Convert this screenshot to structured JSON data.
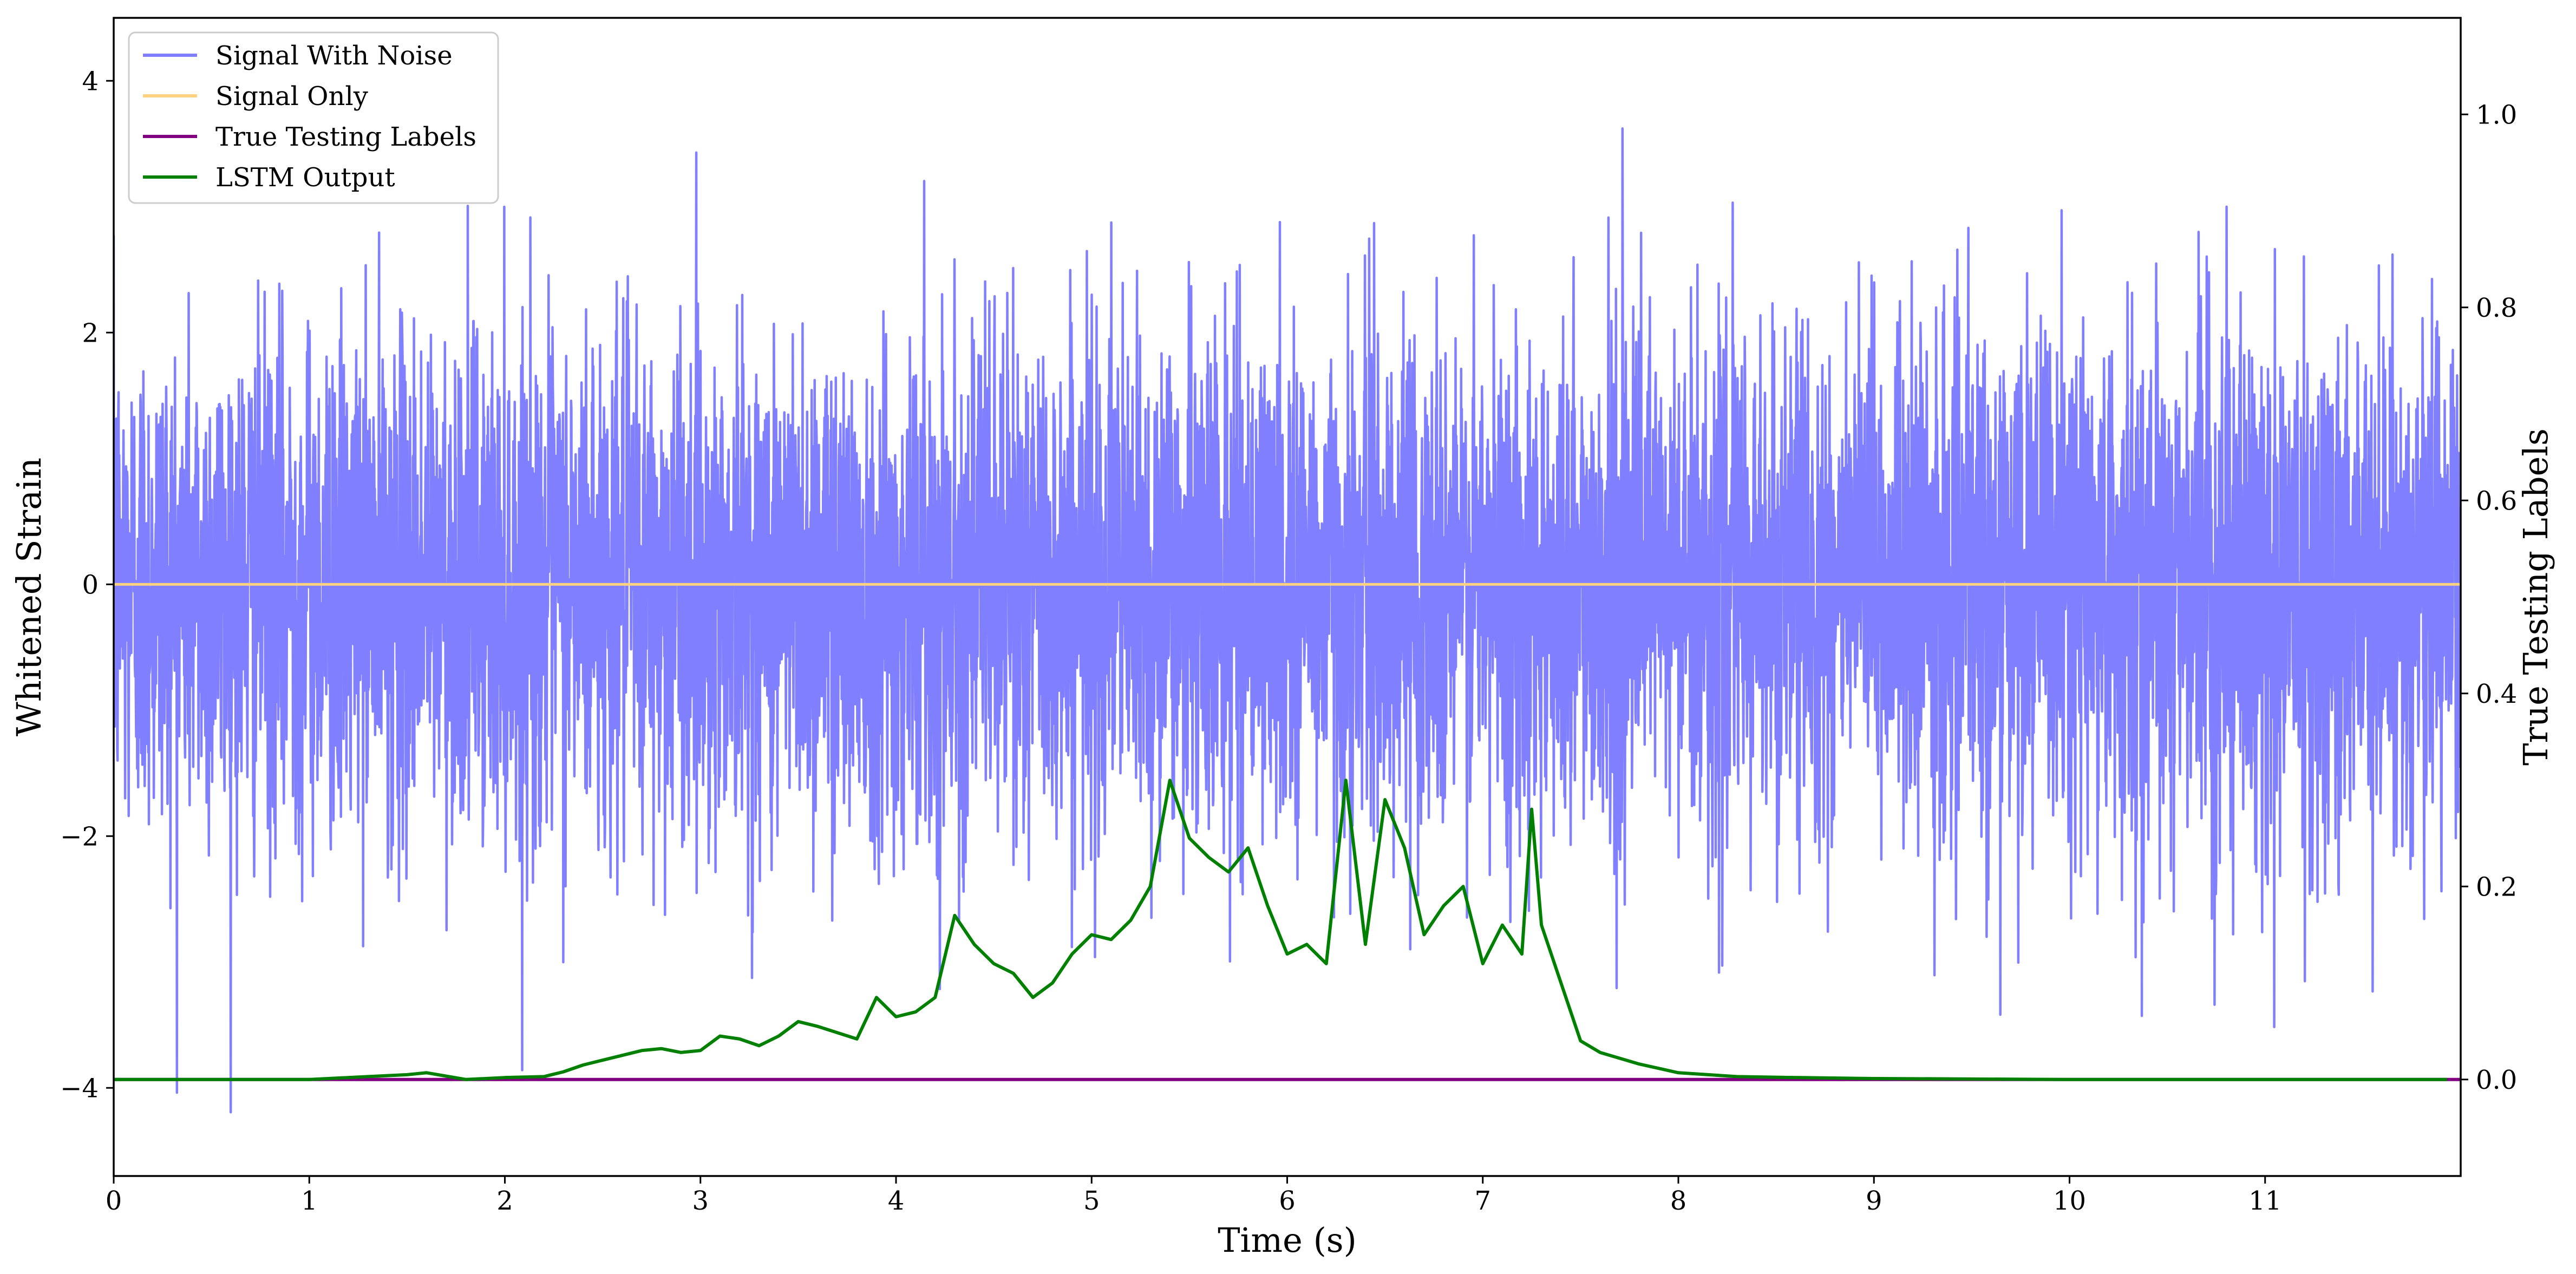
{
  "chart_data": {
    "type": "line",
    "xlabel": "Time (s)",
    "ylabel_left": "Whitened Strain",
    "ylabel_right": "True Testing Labels",
    "xlim": [
      0,
      12
    ],
    "ylim_left": [
      -4.7,
      4.5
    ],
    "ylim_right": [
      -0.1,
      1.1
    ],
    "x_ticks": [
      "0",
      "1",
      "2",
      "3",
      "4",
      "5",
      "6",
      "7",
      "8",
      "9",
      "10",
      "11"
    ],
    "y_ticks_left": [
      "4",
      "2",
      "0",
      "−2",
      "−4"
    ],
    "y_ticks_right": [
      "1.0",
      "0.8",
      "0.6",
      "0.4",
      "0.2",
      "0.0"
    ],
    "grid": false,
    "legend_position": "upper-left",
    "series": [
      {
        "name": "Signal With Noise",
        "axis": "left",
        "color": "#7f7fff",
        "style": "noise",
        "sigma": 1.0,
        "range": [
          -4.25,
          4.1
        ]
      },
      {
        "name": "Signal Only",
        "axis": "left",
        "color": "#ffd280",
        "x": [
          0,
          12
        ],
        "y": [
          0,
          0
        ]
      },
      {
        "name": "True Testing Labels",
        "axis": "right",
        "color": "#800080",
        "x": [
          0,
          12
        ],
        "y": [
          0,
          0
        ]
      },
      {
        "name": "LSTM Output",
        "axis": "right",
        "color": "#008000",
        "x": [
          0,
          1.0,
          1.3,
          1.5,
          1.6,
          1.8,
          2.0,
          2.2,
          2.3,
          2.4,
          2.5,
          2.6,
          2.7,
          2.8,
          2.9,
          3.0,
          3.1,
          3.2,
          3.3,
          3.4,
          3.5,
          3.6,
          3.8,
          3.9,
          4.0,
          4.1,
          4.2,
          4.3,
          4.4,
          4.5,
          4.6,
          4.7,
          4.8,
          4.9,
          5.0,
          5.1,
          5.2,
          5.3,
          5.4,
          5.5,
          5.6,
          5.7,
          5.8,
          5.9,
          6.0,
          6.1,
          6.2,
          6.3,
          6.4,
          6.5,
          6.6,
          6.7,
          6.8,
          6.9,
          7.0,
          7.1,
          7.2,
          7.25,
          7.3,
          7.4,
          7.5,
          7.6,
          7.8,
          8.0,
          8.3,
          8.6,
          9.0,
          10.0,
          12.0
        ],
        "y": [
          0.0,
          0.0,
          0.003,
          0.005,
          0.007,
          0.0,
          0.002,
          0.003,
          0.008,
          0.015,
          0.02,
          0.025,
          0.03,
          0.032,
          0.028,
          0.03,
          0.045,
          0.042,
          0.035,
          0.045,
          0.06,
          0.055,
          0.042,
          0.085,
          0.065,
          0.07,
          0.085,
          0.17,
          0.14,
          0.12,
          0.11,
          0.085,
          0.1,
          0.13,
          0.15,
          0.145,
          0.165,
          0.2,
          0.31,
          0.25,
          0.23,
          0.215,
          0.24,
          0.18,
          0.13,
          0.14,
          0.12,
          0.31,
          0.14,
          0.29,
          0.24,
          0.15,
          0.18,
          0.2,
          0.12,
          0.16,
          0.13,
          0.28,
          0.16,
          0.1,
          0.04,
          0.028,
          0.016,
          0.007,
          0.003,
          0.002,
          0.001,
          0.0,
          0.0
        ]
      }
    ]
  }
}
